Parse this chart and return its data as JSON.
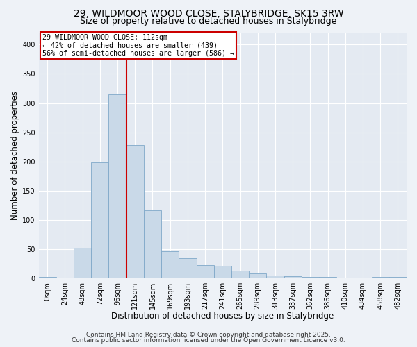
{
  "title_line1": "29, WILDMOOR WOOD CLOSE, STALYBRIDGE, SK15 3RW",
  "title_line2": "Size of property relative to detached houses in Stalybridge",
  "xlabel": "Distribution of detached houses by size in Stalybridge",
  "ylabel": "Number of detached properties",
  "bin_labels": [
    "0sqm",
    "24sqm",
    "48sqm",
    "72sqm",
    "96sqm",
    "121sqm",
    "145sqm",
    "169sqm",
    "193sqm",
    "217sqm",
    "241sqm",
    "265sqm",
    "289sqm",
    "313sqm",
    "337sqm",
    "362sqm",
    "386sqm",
    "410sqm",
    "434sqm",
    "458sqm",
    "482sqm"
  ],
  "bar_heights": [
    2,
    0,
    52,
    198,
    315,
    228,
    116,
    47,
    35,
    23,
    22,
    13,
    8,
    5,
    4,
    3,
    3,
    1,
    0,
    3,
    2
  ],
  "bar_color": "#c9d9e8",
  "bar_edgecolor": "#7fa8c9",
  "vline_x": 4.5,
  "vline_color": "#cc0000",
  "annotation_text": "29 WILDMOOR WOOD CLOSE: 112sqm\n← 42% of detached houses are smaller (439)\n56% of semi-detached houses are larger (586) →",
  "annotation_box_color": "#cc0000",
  "ylim": [
    0,
    420
  ],
  "yticks": [
    0,
    50,
    100,
    150,
    200,
    250,
    300,
    350,
    400
  ],
  "footnote1": "Contains HM Land Registry data © Crown copyright and database right 2025.",
  "footnote2": "Contains public sector information licensed under the Open Government Licence v3.0.",
  "bg_color": "#eef2f7",
  "plot_bg_color": "#e4eaf2",
  "grid_color": "#ffffff",
  "title_fontsize": 10,
  "subtitle_fontsize": 9,
  "axis_fontsize": 8.5,
  "tick_fontsize": 7,
  "footnote_fontsize": 6.5
}
